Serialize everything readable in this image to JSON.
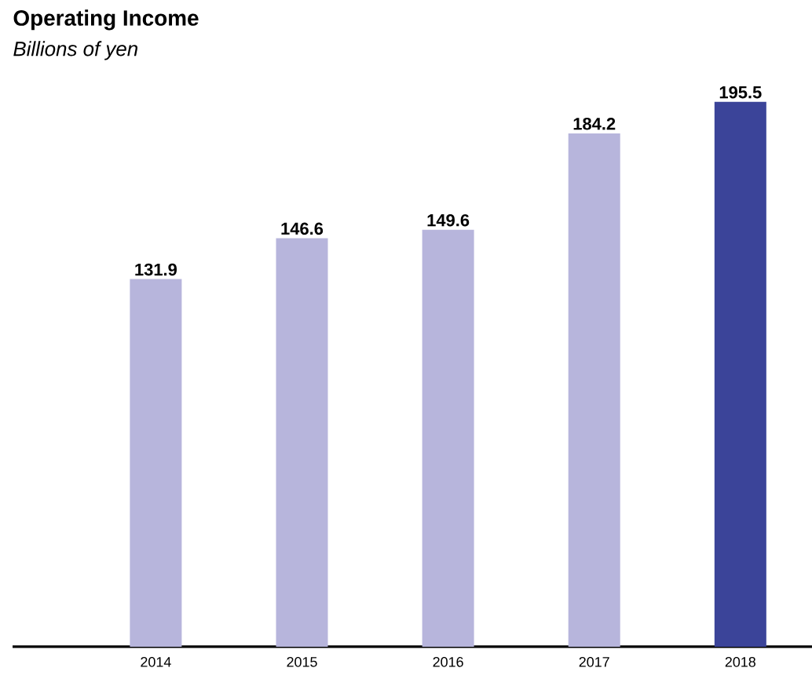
{
  "chart_data": {
    "type": "bar",
    "title": "Operating Income",
    "subtitle": "Billions of yen",
    "categories": [
      "2014",
      "2015",
      "2016",
      "2017",
      "2018"
    ],
    "values": [
      131.9,
      146.6,
      149.6,
      184.2,
      195.5
    ],
    "colors": [
      "#b7b5dc",
      "#b7b5dc",
      "#b7b5dc",
      "#b7b5dc",
      "#3b4499"
    ],
    "data_labels": true
  }
}
